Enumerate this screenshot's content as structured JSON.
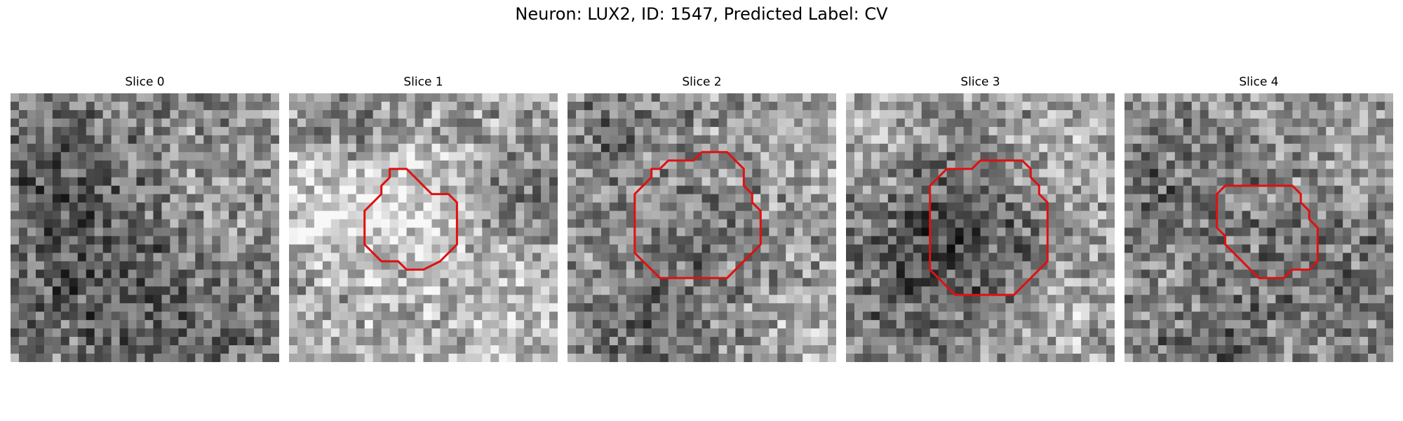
{
  "figure": {
    "title": "Neuron: LUX2, ID: 1547, Predicted Label: CV",
    "contour_color": "#e01010"
  },
  "panels": [
    {
      "title": "Slice 0",
      "has_contour": false
    },
    {
      "title": "Slice 1",
      "has_contour": true
    },
    {
      "title": "Slice 2",
      "has_contour": true
    },
    {
      "title": "Slice 3",
      "has_contour": true
    },
    {
      "title": "Slice 4",
      "has_contour": true
    }
  ]
}
